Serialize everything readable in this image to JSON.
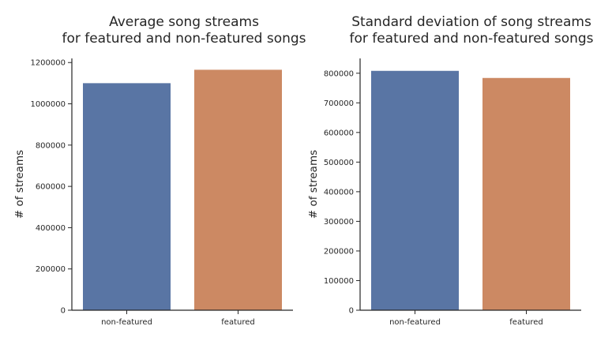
{
  "chart_data": [
    {
      "type": "bar",
      "title": [
        "Average song streams",
        "for featured and non-featured songs"
      ],
      "xlabel": "",
      "ylabel": "# of streams",
      "categories": [
        "non-featured",
        "featured"
      ],
      "values": [
        1100000,
        1165000
      ],
      "colors": [
        "#5975a4",
        "#cc8963"
      ],
      "ylim": [
        0,
        1220000
      ],
      "yticks": [
        0,
        200000,
        400000,
        600000,
        800000,
        1000000,
        1200000
      ],
      "grid": false
    },
    {
      "type": "bar",
      "title": [
        "Standard deviation of song streams",
        "for featured and non-featured songs"
      ],
      "xlabel": "",
      "ylabel": "# of streams",
      "categories": [
        "non-featured",
        "featured"
      ],
      "values": [
        808000,
        784000
      ],
      "colors": [
        "#5975a4",
        "#cc8963"
      ],
      "ylim": [
        0,
        850000
      ],
      "yticks": [
        0,
        100000,
        200000,
        300000,
        400000,
        500000,
        600000,
        700000,
        800000
      ],
      "grid": false
    }
  ]
}
